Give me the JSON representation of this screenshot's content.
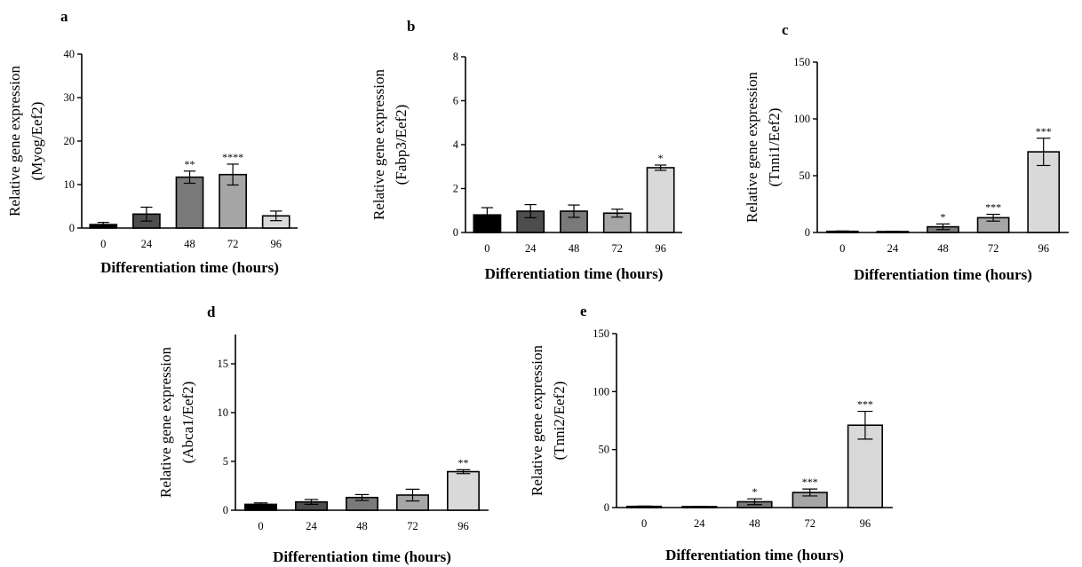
{
  "figure": {
    "colors": {
      "bar_fills": [
        "#000000",
        "#4d4d4d",
        "#7a7a7a",
        "#a6a6a6",
        "#d9d9d9"
      ],
      "axis": "#000000"
    }
  },
  "chart_data": [
    {
      "panel": "a",
      "type": "bar",
      "categories": [
        "0",
        "24",
        "48",
        "72",
        "96"
      ],
      "values": [
        0.8,
        3.2,
        11.7,
        12.3,
        2.8
      ],
      "errors": [
        0.5,
        1.6,
        1.4,
        2.4,
        1.1
      ],
      "significance": [
        "",
        "",
        "**",
        "****",
        ""
      ],
      "xlabel": "Differentiation time (hours)",
      "ylabel": [
        "Relative gene expression",
        "(Myog/Eef2)"
      ],
      "ylim": [
        0,
        40
      ],
      "yticks": [
        0,
        10,
        20,
        30,
        40
      ]
    },
    {
      "panel": "b",
      "type": "bar",
      "categories": [
        "0",
        "24",
        "48",
        "72",
        "96"
      ],
      "values": [
        0.8,
        0.97,
        0.97,
        0.88,
        2.95
      ],
      "errors": [
        0.33,
        0.3,
        0.28,
        0.18,
        0.12
      ],
      "significance": [
        "",
        "",
        "",
        "",
        "*"
      ],
      "xlabel": "Differentiation time (hours)",
      "ylabel": [
        "Relative gene expression",
        "(Fabp3/Eef2)"
      ],
      "ylim": [
        0,
        8
      ],
      "yticks": [
        0,
        2,
        4,
        6,
        8
      ]
    },
    {
      "panel": "c",
      "type": "bar",
      "categories": [
        "0",
        "24",
        "48",
        "72",
        "96"
      ],
      "values": [
        1,
        0.8,
        5,
        13,
        71
      ],
      "errors": [
        0.3,
        0.3,
        2.5,
        3,
        12
      ],
      "significance": [
        "",
        "",
        "*",
        "***",
        "***"
      ],
      "xlabel": "Differentiation time (hours)",
      "ylabel": [
        "Relative gene expression",
        "(Tnni1/Eef2)"
      ],
      "ylim": [
        0,
        150
      ],
      "yticks": [
        0,
        50,
        100,
        150
      ]
    },
    {
      "panel": "d",
      "type": "bar",
      "categories": [
        "0",
        "24",
        "48",
        "72",
        "96"
      ],
      "values": [
        0.6,
        0.85,
        1.3,
        1.55,
        3.95
      ],
      "errors": [
        0.15,
        0.25,
        0.3,
        0.6,
        0.2
      ],
      "significance": [
        "",
        "",
        "",
        "",
        "**"
      ],
      "xlabel": "Differentiation time (hours)",
      "ylabel": [
        "Relative gene expression",
        "(Abca1/Eef2)"
      ],
      "ylim": [
        0,
        18
      ],
      "yticks": [
        0,
        5,
        10,
        15
      ]
    },
    {
      "panel": "e",
      "type": "bar",
      "categories": [
        "0",
        "24",
        "48",
        "72",
        "96"
      ],
      "values": [
        1,
        0.8,
        5,
        13,
        71
      ],
      "errors": [
        0.3,
        0.3,
        2.5,
        3,
        12
      ],
      "significance": [
        "",
        "",
        "*",
        "***",
        "***"
      ],
      "xlabel": "Differentiation time (hours)",
      "ylabel": [
        "Relative gene expression",
        "(Tnni2/Eef2)"
      ],
      "ylim": [
        0,
        150
      ],
      "yticks": [
        0,
        50,
        100,
        150
      ]
    }
  ]
}
